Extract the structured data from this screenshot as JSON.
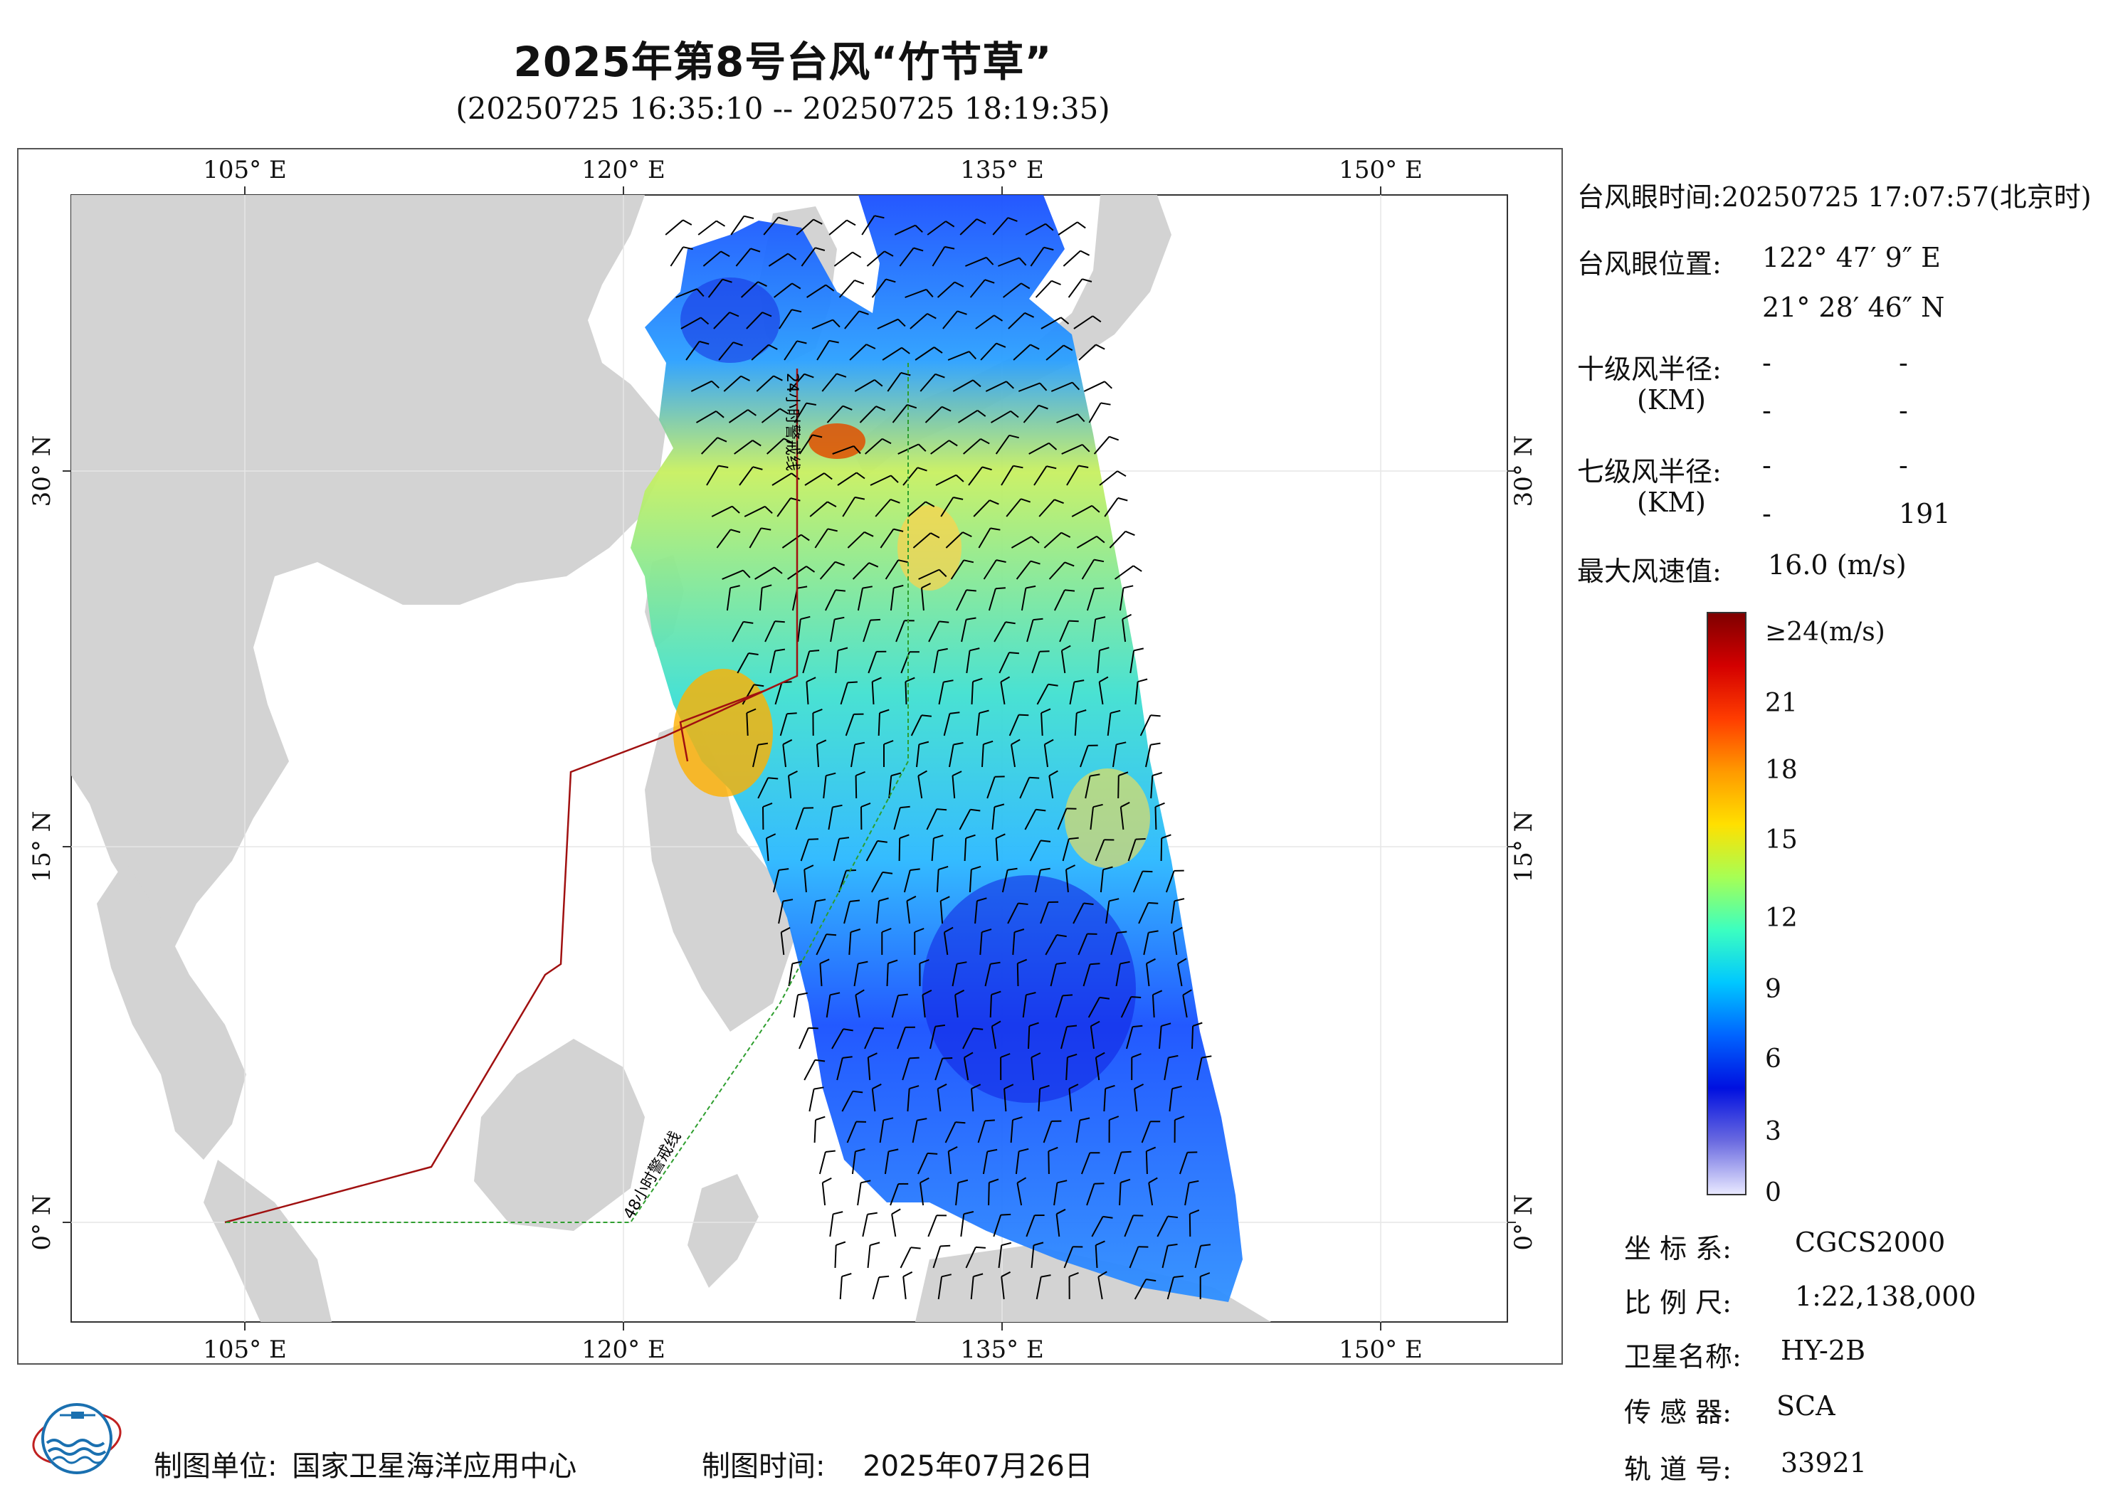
{
  "header": {
    "title": "2025年第8号台风“竹节草”",
    "subtitle": "(20250725 16:35:10 -- 20250725 18:19:35)"
  },
  "map": {
    "lon_ticks": [
      "105° E",
      "120° E",
      "135° E",
      "150° E"
    ],
    "lat_ticks": [
      "30° N",
      "15° N",
      "0° N"
    ],
    "warning_line_24h": "24小时警戒线",
    "warning_line_48h": "48小时警戒线",
    "colors": {
      "land": "#d3d3d3",
      "sea": "#ffffff",
      "line_24h": "#a01010",
      "line_48h": "#2e9e2e",
      "wind_barb": "#000000"
    }
  },
  "info_panel": {
    "eye_time_label": "台风眼时间:",
    "eye_time_value": "20250725 17:07:57(北京时)",
    "eye_pos_label": "台风眼位置:",
    "eye_lon": "122° 47′ 9″ E",
    "eye_lat": "21° 28′ 46″ N",
    "r10_label": "十级风半径:",
    "r10_unit": "(KM)",
    "r10_values": [
      "-",
      "-",
      "-",
      "-"
    ],
    "r7_label": "七级风半径:",
    "r7_unit": "(KM)",
    "r7_values": [
      "-",
      "-",
      "-",
      "191"
    ],
    "max_wind_label": "最大风速值:",
    "max_wind_value": "16.0 (m/s)"
  },
  "colorbar": {
    "labels": [
      "≥24(m/s)",
      "21",
      "18",
      "15",
      "12",
      "9",
      "6",
      "3",
      "0"
    ],
    "colors": [
      "#7f0000",
      "#d40000",
      "#ff3d00",
      "#ff9a00",
      "#ffe000",
      "#a6ff55",
      "#3cffc0",
      "#00c8ff",
      "#0064ff",
      "#0010e0",
      "#6a6ae0",
      "#e8e8ff"
    ]
  },
  "meta": {
    "crs_label": "坐 标 系:",
    "crs_value": "CGCS2000",
    "scale_label": "比 例 尺:",
    "scale_value": "1:22,138,000",
    "satellite_label": "卫星名称:",
    "satellite_value": "HY-2B",
    "sensor_label": "传 感 器:",
    "sensor_value": "SCA",
    "orbit_label": "轨 道 号:",
    "orbit_value": "33921"
  },
  "footer": {
    "producer_label": "制图单位:",
    "producer_value": "国家卫星海洋应用中心",
    "date_label": "制图时间:",
    "date_value": "2025年07月26日"
  }
}
